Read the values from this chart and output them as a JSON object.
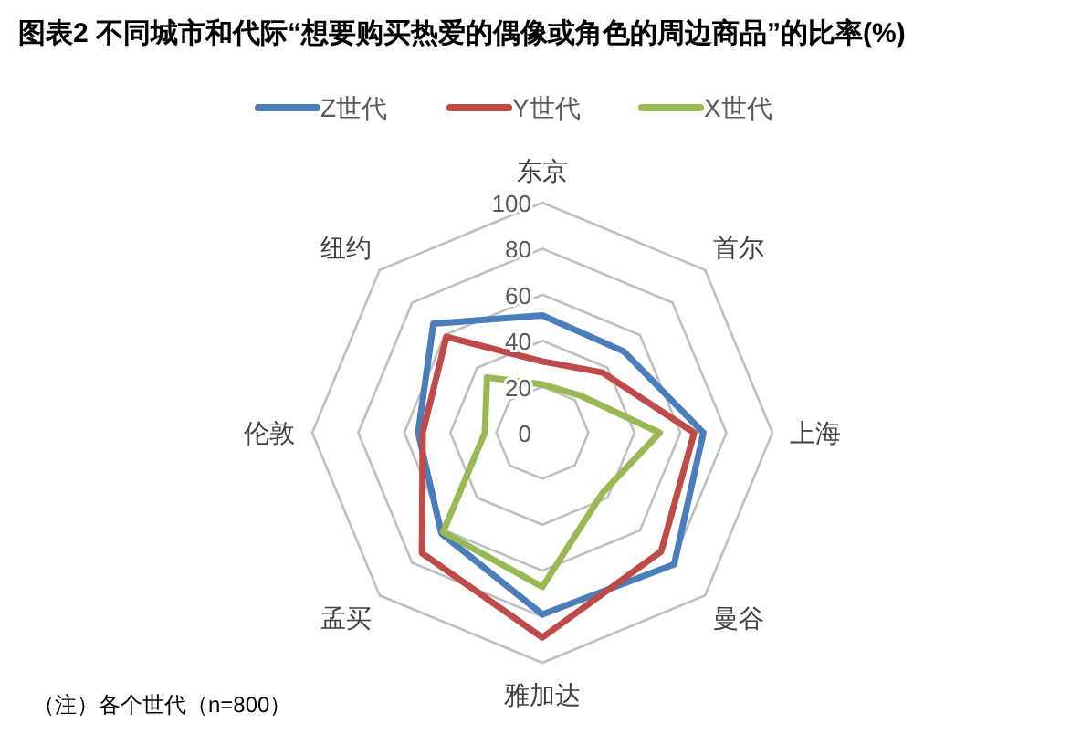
{
  "chart_data": {
    "type": "radar",
    "title": "图表2  不同城市和代际“想要购买热爱的偶像或角色的周边商品”的比率(%)",
    "categories": [
      "东京",
      "首尔",
      "上海",
      "曼谷",
      "雅加达",
      "孟买",
      "伦敦",
      "纽约"
    ],
    "series": [
      {
        "name": "Z世代",
        "color": "#4a7ebb",
        "values": [
          51,
          50,
          70,
          81,
          79,
          62,
          54,
          67
        ]
      },
      {
        "name": "Y世代",
        "color": "#be4b48",
        "values": [
          31,
          37,
          66,
          73,
          89,
          74,
          52,
          59
        ]
      },
      {
        "name": "X世代",
        "color": "#98b954",
        "values": [
          21,
          23,
          51,
          37,
          67,
          61,
          25,
          34
        ]
      }
    ],
    "ylim": [
      0,
      100
    ],
    "yticks": [
      0,
      20,
      40,
      60,
      80,
      100
    ],
    "grid": true,
    "legend": "top",
    "marker": "none",
    "line_style": "solid",
    "annotations": [
      "（注）各个世代（n=800）"
    ]
  }
}
